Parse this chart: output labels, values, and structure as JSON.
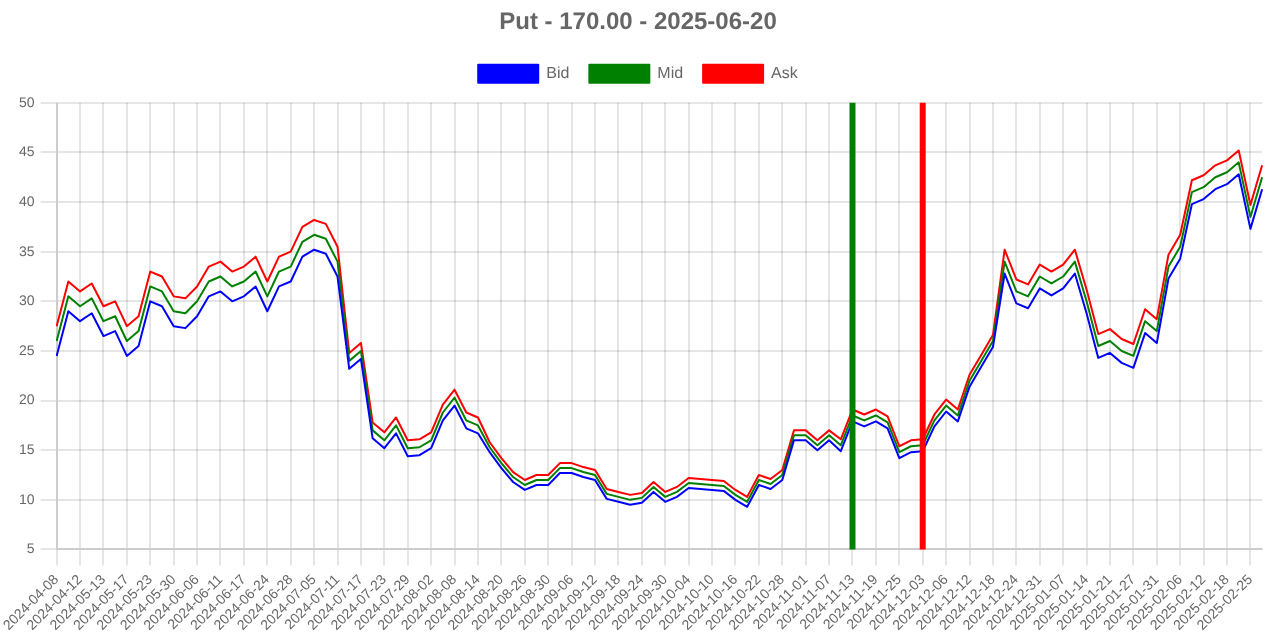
{
  "chart_data": {
    "type": "line",
    "title": "Put - 170.00 - 2025-06-20",
    "categories": [
      "2024-04-08",
      null,
      "2024-04-12",
      null,
      "2024-05-13",
      null,
      "2024-05-17",
      null,
      "2024-05-23",
      null,
      "2024-05-30",
      null,
      "2024-06-06",
      null,
      "2024-06-11",
      null,
      "2024-06-17",
      null,
      "2024-06-24",
      null,
      "2024-06-28",
      null,
      "2024-07-05",
      null,
      "2024-07-11",
      null,
      "2024-07-17",
      null,
      "2024-07-23",
      null,
      "2024-07-29",
      null,
      "2024-08-02",
      null,
      "2024-08-08",
      null,
      "2024-08-14",
      null,
      "2024-08-20",
      null,
      "2024-08-26",
      null,
      "2024-08-30",
      null,
      "2024-09-06",
      null,
      "2024-09-12",
      null,
      "2024-09-18",
      null,
      "2024-09-24",
      null,
      "2024-09-30",
      null,
      "2024-10-04",
      null,
      "2024-10-10",
      null,
      "2024-10-16",
      null,
      "2024-10-22",
      null,
      "2024-10-28",
      null,
      "2024-11-01",
      null,
      "2024-11-07",
      null,
      "2024-11-13",
      null,
      "2024-11-19",
      null,
      "2024-11-25",
      null,
      "2024-12-03",
      null,
      "2024-12-06",
      null,
      "2024-12-12",
      null,
      "2024-12-18",
      null,
      "2024-12-24",
      null,
      "2024-12-31",
      null,
      "2025-01-07",
      null,
      "2025-01-14",
      null,
      "2025-01-21",
      null,
      "2025-01-27",
      null,
      "2025-01-31",
      null,
      "2025-02-06",
      null,
      "2025-02-12",
      null,
      "2025-02-18",
      null,
      "2025-02-25",
      null
    ],
    "series": [
      {
        "name": "Bid",
        "color": "#0000ff",
        "values": [
          24.5,
          29,
          28,
          28.8,
          26.5,
          27,
          24.5,
          25.5,
          30,
          29.5,
          27.5,
          27.3,
          28.5,
          30.5,
          31,
          30,
          30.5,
          31.5,
          29,
          31.5,
          32,
          34.5,
          35.2,
          34.8,
          32.5,
          23.2,
          24.2,
          16.2,
          15.2,
          16.7,
          14.4,
          14.5,
          15.2,
          18,
          19.5,
          17.2,
          16.7,
          14.8,
          13.2,
          11.8,
          11,
          11.5,
          11.5,
          12.7,
          12.7,
          12.3,
          12,
          10.1,
          9.8,
          9.5,
          9.7,
          10.8,
          9.8,
          10.3,
          11.2,
          11.1,
          11,
          10.9,
          10,
          9.3,
          11.5,
          11.1,
          12,
          16,
          16,
          15,
          16,
          14.9,
          17.9,
          17.4,
          17.9,
          17.2,
          14.2,
          14.8,
          14.9,
          17.4,
          18.9,
          17.9,
          21.4,
          23.4,
          25.4,
          32.8,
          29.8,
          29.3,
          31.3,
          30.6,
          31.3,
          32.8,
          28.8,
          24.3,
          24.8,
          23.8,
          23.3,
          26.8,
          25.8,
          32.3,
          34.3,
          39.8,
          40.3,
          41.3,
          41.8,
          42.8,
          37.3,
          41.3
        ]
      },
      {
        "name": "Mid",
        "color": "#008000",
        "values": [
          26,
          30.5,
          29.5,
          30.3,
          28,
          28.5,
          26,
          27,
          31.5,
          31,
          29,
          28.8,
          30,
          32,
          32.5,
          31.5,
          32,
          33,
          30.5,
          33,
          33.5,
          36,
          36.7,
          36.3,
          34,
          24,
          25,
          17,
          16,
          17.5,
          15.2,
          15.3,
          16,
          18.8,
          20.3,
          18,
          17.5,
          15.3,
          13.7,
          12.3,
          11.5,
          12,
          12,
          13.2,
          13.2,
          12.8,
          12.5,
          10.6,
          10.3,
          10,
          10.2,
          11.3,
          10.3,
          10.8,
          11.7,
          11.6,
          11.5,
          11.4,
          10.5,
          9.8,
          12,
          11.6,
          12.5,
          16.5,
          16.5,
          15.5,
          16.5,
          15.5,
          18.5,
          18,
          18.5,
          17.8,
          14.8,
          15.4,
          15.5,
          18,
          19.5,
          18.5,
          22,
          24,
          26,
          34,
          31,
          30.5,
          32.5,
          31.8,
          32.5,
          34,
          30,
          25.5,
          26,
          25,
          24.5,
          28,
          27,
          33.5,
          35.5,
          41,
          41.5,
          42.5,
          43,
          44,
          38.5,
          42.5
        ]
      },
      {
        "name": "Ask",
        "color": "#ff0000",
        "values": [
          27.5,
          32,
          31,
          31.8,
          29.5,
          30,
          27.5,
          28.5,
          33,
          32.5,
          30.5,
          30.3,
          31.5,
          33.5,
          34,
          33,
          33.5,
          34.5,
          32,
          34.5,
          35,
          37.5,
          38.2,
          37.8,
          35.5,
          24.8,
          25.8,
          17.8,
          16.8,
          18.3,
          16,
          16.1,
          16.8,
          19.6,
          21.1,
          18.8,
          18.3,
          15.8,
          14.2,
          12.8,
          12,
          12.5,
          12.5,
          13.7,
          13.7,
          13.3,
          13,
          11.1,
          10.8,
          10.5,
          10.7,
          11.8,
          10.8,
          11.3,
          12.2,
          12.1,
          12,
          11.9,
          11,
          10.3,
          12.5,
          12.1,
          13,
          17,
          17,
          16,
          17,
          16.1,
          19.1,
          18.6,
          19.1,
          18.4,
          15.4,
          16,
          16.1,
          18.6,
          20.1,
          19.1,
          22.6,
          24.6,
          26.6,
          35.2,
          32.2,
          31.7,
          33.7,
          33,
          33.7,
          35.2,
          31.2,
          26.7,
          27.2,
          26.2,
          25.7,
          29.2,
          28.2,
          34.7,
          36.7,
          42.2,
          42.7,
          43.7,
          44.2,
          45.2,
          39.7,
          43.7
        ]
      }
    ],
    "ylim": [
      5,
      50
    ],
    "yticks": [
      5,
      10,
      15,
      20,
      25,
      30,
      35,
      40,
      45,
      50
    ],
    "ref_lines": [
      {
        "axis": "x",
        "value": "2024-11-13",
        "color": "#008000"
      },
      {
        "axis": "x",
        "value": "2024-12-03",
        "color": "#ff0000"
      }
    ],
    "grid": true,
    "legend": "top",
    "marker": "none",
    "line_style": "solid"
  }
}
